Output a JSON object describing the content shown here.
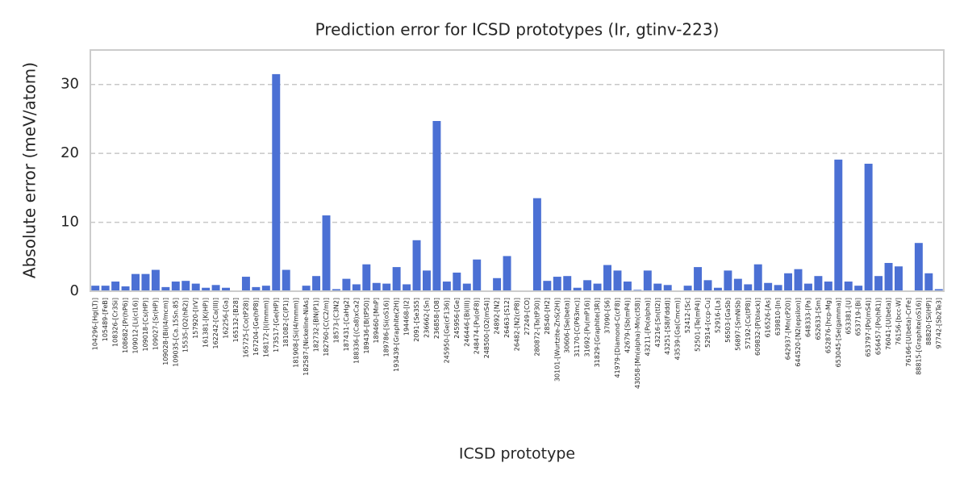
{
  "chart_data": {
    "type": "bar",
    "title": "Prediction error for ICSD prototypes (Ir, gtinv-223)",
    "x_label": "ICSD prototype",
    "y_label": "Absolute error (meV/atom)",
    "color": "#4b70d4",
    "grid": true,
    "ylim": [
      0,
      35
    ],
    "yticks": [
      0,
      10,
      20,
      30
    ],
    "categories": [
      "104296-[Hg(LT)]",
      "105489-[FeB]",
      "108326-[Cr3Si]",
      "108682-[Pr(hP6)]",
      "109012-[Li(cI16)]",
      "109018-[Cs(HP)]",
      "109027-[Sr(HP)]",
      "109028-[Bi(I4/mcm)]",
      "109035-[Ca.15Sn.85]",
      "15535-[O2(hR2)]",
      "157920-[IrV]",
      "161381-[K(HP)]",
      "162242-[Ca(III)]",
      "162256-[Ga]",
      "165132-[B28]",
      "165725-[Co(tP28)]",
      "167204-[Ge(hP8)]",
      "168172-[I(Immm)]",
      "173517-[Ge(HP)]",
      "181082-[C(P1)]",
      "181908-[Si(I4/mmm)]",
      "182587-[Nickeline-NiAs]",
      "182732-[BN(P1)]",
      "182760-[C(C2/m)]",
      "18573-[C3N2]",
      "187431-[CaHg2]",
      "188336-[(Ca8)xCa2]",
      "189436-[B(tP50)]",
      "189460-[MnP]",
      "189786-[Si(oS16)]",
      "193439-[Graphite(2H)]",
      "194468-[I2]",
      "2091-[Se3S5]",
      "236662-[Sn]",
      "236858-[O8]",
      "245950-[Ge(cF136)]",
      "245956-[Ge]",
      "246446-[Bi(III)]",
      "248474-[Pu(oF8)]",
      "248500-[O2(mS4)]",
      "24892-[N2]",
      "26463-[S12]",
      "26482-[N2(cP8)]",
      "27249-[CO]",
      "280872-[Ta(tP30)]",
      "28540-[H2]",
      "30101-[Wurtzite-ZnS(2H)]",
      "30606-[Se(beta)]",
      "31170-[C(P63mc)]",
      "31692-[Pu(mP16)]",
      "31829-[Graphite(3R)]",
      "37090-[S6]",
      "41979-[Diamond-C(cF8)]",
      "42679-[Sb(mP4)]",
      "43058-[Mn(alpha)-Mn(cI58)]",
      "43211-[Po(alpha)]",
      "43216-[Sn(tI2)]",
      "43251-[S8(Fddd)]",
      "43539-[Ga(Cmcm)]",
      "52412-[Sc]",
      "52501-[Te(mP4)]",
      "52914-[ccp-Cu]",
      "52916-[La]",
      "56503-[GaSb]",
      "56897-[SmNiSb]",
      "57192-[Cs(tP8)]",
      "609832-[P(black)]",
      "616526-[As]",
      "639810-[In]",
      "642937-[Mn(cP20)]",
      "644520-[N2(epsilon)]",
      "648333-[Pa]",
      "652633-[Sm]",
      "652876-[hcp-Mg]",
      "653045-[Se(gamma)]",
      "653381-[U]",
      "653719-[Bi]",
      "653797-[Po(mS4)]",
      "656457-[Po(hR1)]",
      "76041-[U(beta)]",
      "76156-[bcc-W]",
      "76166-[U(beta)-CrFe]",
      "88815-[Graphite(oS16)]",
      "88820-[Si(HP)]",
      "97742-[Sb2Te3]"
    ],
    "values": [
      0.8,
      0.8,
      1.4,
      0.7,
      2.5,
      2.5,
      3.1,
      0.6,
      1.4,
      1.5,
      1.1,
      0.5,
      0.9,
      0.5,
      0.05,
      2.1,
      0.6,
      0.8,
      31.5,
      3.1,
      0.05,
      0.8,
      2.2,
      11.0,
      0.3,
      1.8,
      1.0,
      3.9,
      1.2,
      1.1,
      3.5,
      1.0,
      7.4,
      3.0,
      24.7,
      1.4,
      2.7,
      1.1,
      4.6,
      0.05,
      1.9,
      5.1,
      0.05,
      0.05,
      13.5,
      1.5,
      2.1,
      2.2,
      0.5,
      1.6,
      1.1,
      3.8,
      3.0,
      1.4,
      0.2,
      3.0,
      1.1,
      0.9,
      0.05,
      0.8,
      3.5,
      1.6,
      0.5,
      3.0,
      1.8,
      1.0,
      3.9,
      1.2,
      0.9,
      2.6,
      3.2,
      1.1,
      2.2,
      1.4,
      19.1,
      1.4,
      0.8,
      18.5,
      2.2,
      4.1,
      3.6,
      0.05,
      7.0,
      2.6,
      0.3
    ]
  }
}
